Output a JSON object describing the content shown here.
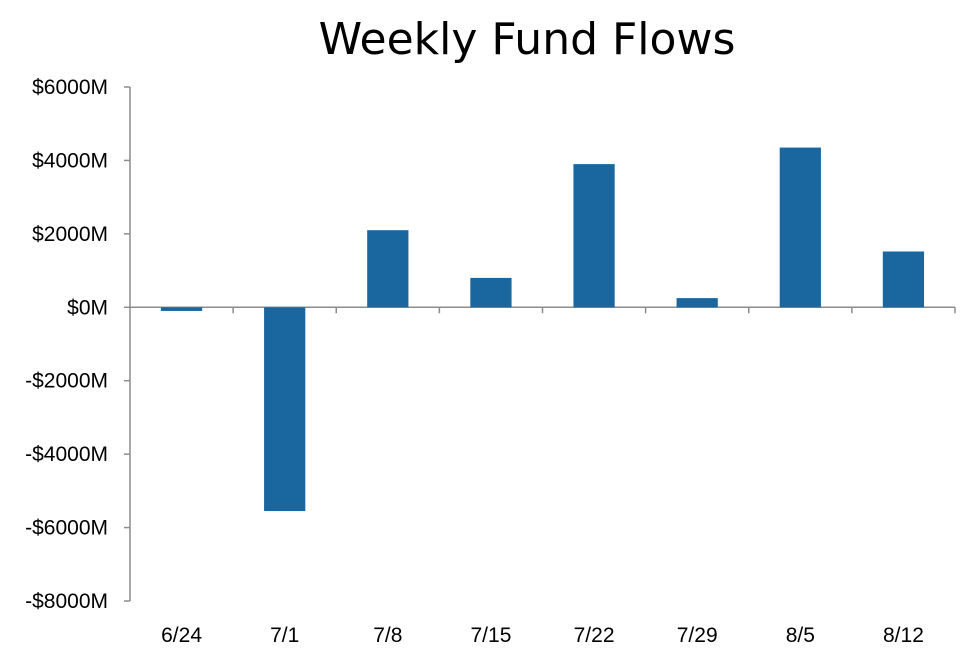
{
  "chart_data": {
    "type": "bar",
    "title": "Weekly Fund Flows",
    "xlabel": "",
    "ylabel": "",
    "categories": [
      "6/24",
      "7/1",
      "7/8",
      "7/15",
      "7/22",
      "7/29",
      "8/5",
      "8/12"
    ],
    "values": [
      -100,
      -5550,
      2100,
      800,
      3900,
      250,
      4350,
      1520
    ],
    "ylim": [
      -8000,
      6000
    ],
    "yticks": [
      6000,
      4000,
      2000,
      0,
      -2000,
      -4000,
      -6000,
      -8000
    ],
    "ytick_labels": [
      "$6000M",
      "$4000M",
      "$2000M",
      "$0M",
      "-$2000M",
      "-$4000M",
      "-$6000M",
      "-$8000M"
    ],
    "grid": false,
    "legend": "none",
    "bar_color": "#1a67a0",
    "axis_color": "#8c8c8c"
  }
}
